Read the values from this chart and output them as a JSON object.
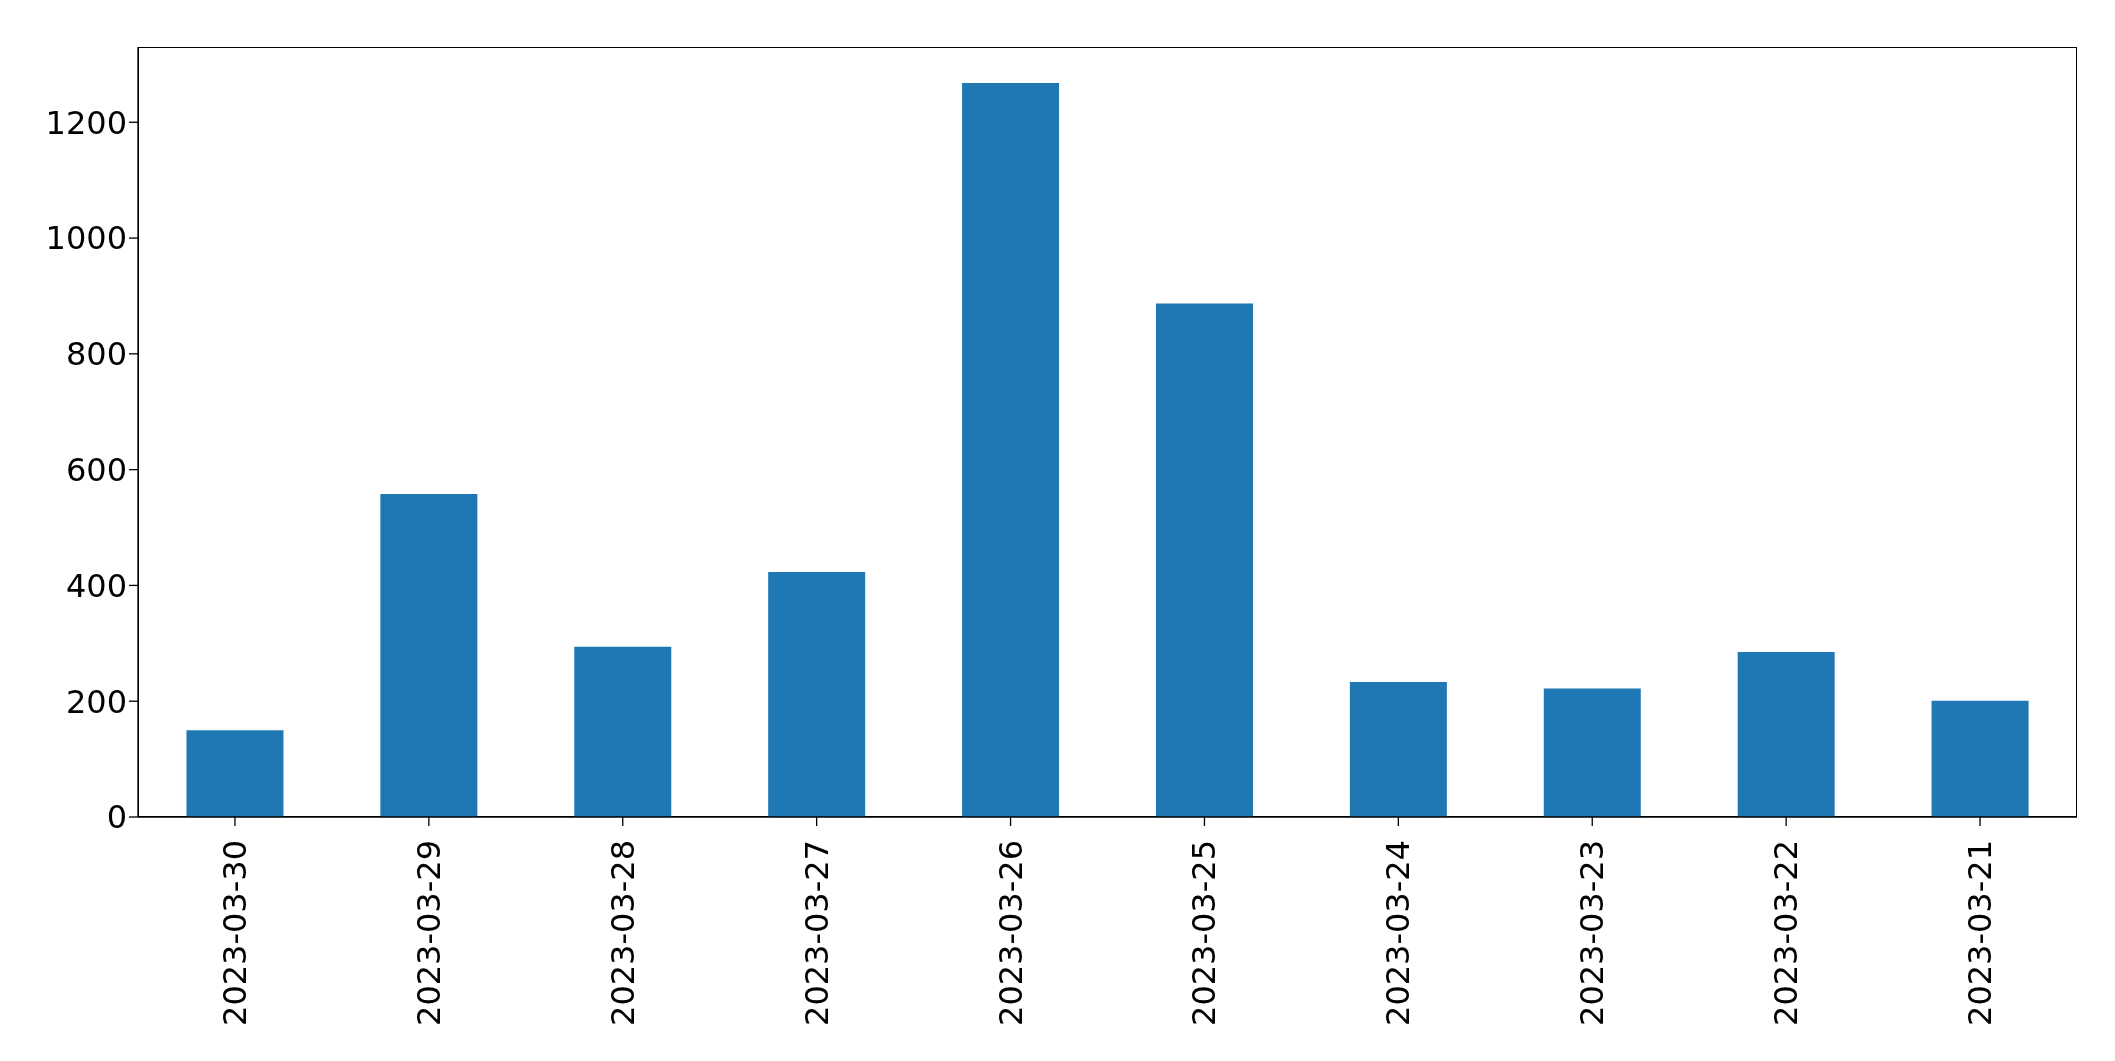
{
  "chart_data": {
    "type": "bar",
    "categories": [
      "2023-03-30",
      "2023-03-29",
      "2023-03-28",
      "2023-03-27",
      "2023-03-26",
      "2023-03-25",
      "2023-03-24",
      "2023-03-23",
      "2023-03-22",
      "2023-03-21"
    ],
    "values": [
      150,
      558,
      294,
      423,
      1268,
      887,
      233,
      222,
      285,
      201
    ],
    "color": "#1f77b4",
    "ylim": [
      0,
      1330
    ],
    "yticks": [
      0,
      200,
      400,
      600,
      800,
      1000,
      1200
    ],
    "grid": false
  }
}
